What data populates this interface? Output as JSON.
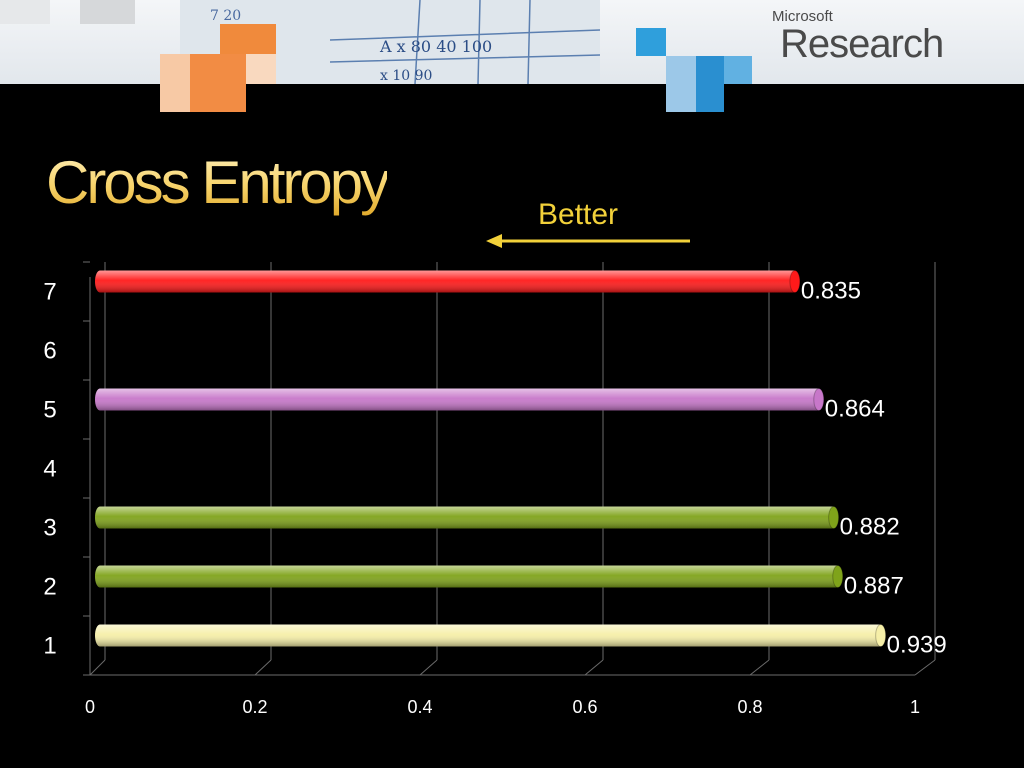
{
  "header": {
    "logo_small": "Microsoft",
    "logo_big": "Research"
  },
  "title": "Cross Entropy",
  "annotation": "Better",
  "colors": {
    "title_gold": "#f5c542",
    "arrow": "#f2d13a",
    "grid": "#6b6b6b"
  },
  "chart_data": {
    "type": "bar",
    "orientation": "horizontal",
    "title": "Cross Entropy",
    "categories": [
      "1",
      "2",
      "3",
      "4",
      "5",
      "6",
      "7"
    ],
    "values": [
      0.939,
      0.887,
      0.882,
      null,
      0.864,
      null,
      0.835
    ],
    "data_labels": [
      "0.939",
      "0.887",
      "0.882",
      "",
      "0.864",
      "",
      "0.835"
    ],
    "bar_colors": [
      "#f6efa8",
      "#7fa31a",
      "#7fa31a",
      "",
      "#c777c9",
      "",
      "#ff1a1a"
    ],
    "xlim": [
      0,
      1
    ],
    "x_ticks": [
      0,
      0.2,
      0.4,
      0.6,
      0.8,
      1
    ],
    "x_tick_labels": [
      "0",
      "0.2",
      "0.4",
      "0.6",
      "0.8",
      "1"
    ],
    "xlabel": "",
    "ylabel": "",
    "grid": true,
    "legend": "none"
  }
}
